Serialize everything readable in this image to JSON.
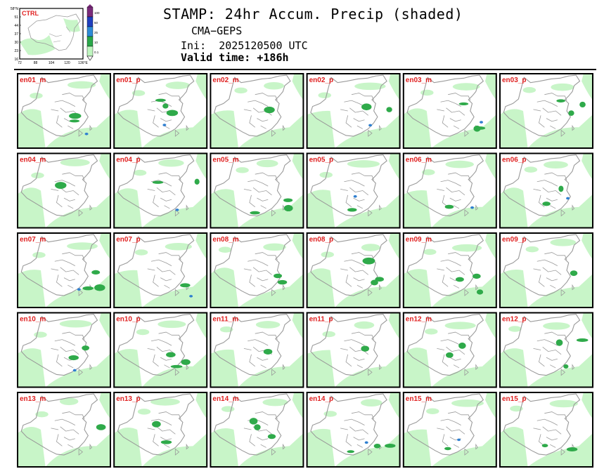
{
  "header": {
    "title": "STAMP: 24hr Accum. Precip (shaded)",
    "model": "CMA−GEPS",
    "init_label": "Ini:",
    "init_time": "2025120500 UTC",
    "valid_label": "Valid time:",
    "valid_hours": "+186h"
  },
  "ctrl_panel": {
    "label": "CTRL",
    "lat_ticks": [
      "58°N",
      "51",
      "44",
      "37",
      "30",
      "23",
      "16"
    ],
    "lon_ticks": [
      "72",
      "88",
      "104",
      "120",
      "136°E"
    ]
  },
  "colorbar": {
    "levels": [
      "100",
      "50",
      "25",
      "10",
      "0.1"
    ],
    "colors": [
      "#7a2a7a",
      "#1f3fbf",
      "#2e8bd6",
      "#2aa84a",
      "#bff5bf"
    ]
  },
  "members": [
    [
      "en01_m",
      "en01_p",
      "en02_m",
      "en02_p",
      "en03_m",
      "en03_p"
    ],
    [
      "en04_m",
      "en04_p",
      "en05_m",
      "en05_p",
      "en06_m",
      "en06_p"
    ],
    [
      "en07_m",
      "en07_p",
      "en08_m",
      "en08_p",
      "en09_m",
      "en09_p"
    ],
    [
      "en10_m",
      "en10_p",
      "en11_m",
      "en11_p",
      "en12_m",
      "en12_p"
    ],
    [
      "en13_m",
      "en13_p",
      "en14_m",
      "en14_p",
      "en15_m",
      "en15_p"
    ]
  ],
  "colors": {
    "label_red": "#e02020",
    "border_gray": "#9a9a9a",
    "light_green": "#c8f5c8",
    "mid_green": "#2faa4a",
    "blue": "#2f7fd0"
  }
}
